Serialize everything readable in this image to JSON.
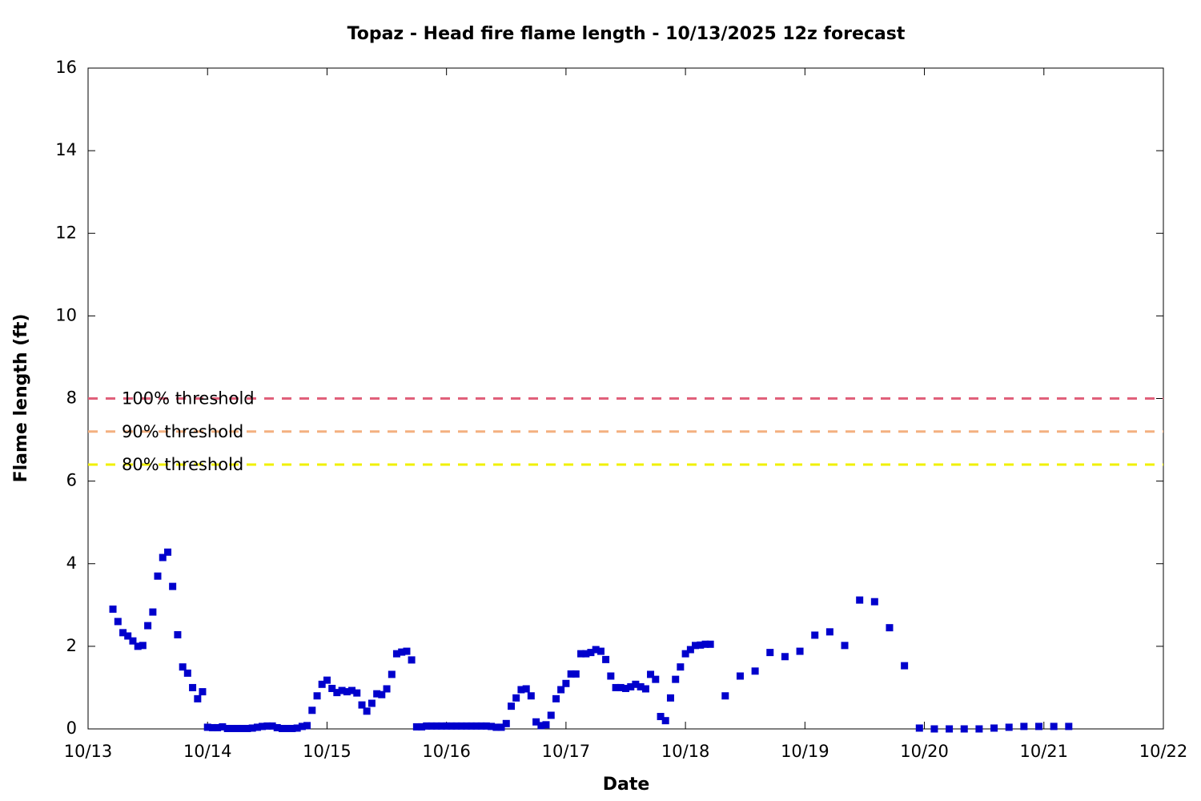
{
  "chart_data": {
    "type": "scatter",
    "title": "Topaz - Head fire flame length - 10/13/2025 12z forecast",
    "x_label": "Date",
    "y_label": "Flame length (ft)",
    "xlim": [
      0,
      9
    ],
    "xticks": [
      {
        "value": 0,
        "label": "10/13"
      },
      {
        "value": 1,
        "label": "10/14"
      },
      {
        "value": 2,
        "label": "10/15"
      },
      {
        "value": 3,
        "label": "10/16"
      },
      {
        "value": 4,
        "label": "10/17"
      },
      {
        "value": 5,
        "label": "10/18"
      },
      {
        "value": 6,
        "label": "10/19"
      },
      {
        "value": 7,
        "label": "10/20"
      },
      {
        "value": 8,
        "label": "10/21"
      },
      {
        "value": 9,
        "label": "10/22"
      }
    ],
    "ylim": [
      0,
      16
    ],
    "yticks": [
      0,
      2,
      4,
      6,
      8,
      10,
      12,
      14,
      16
    ],
    "thresholds": [
      {
        "label": "100% threshold",
        "value": 8,
        "color": "#e0607a"
      },
      {
        "label": "90% threshold",
        "value": 7.2,
        "color": "#f4b080"
      },
      {
        "label": "80% threshold",
        "value": 6.4,
        "color": "#f0f000"
      }
    ],
    "series": [
      {
        "color": "#0000cc",
        "x": [
          0.208,
          0.25,
          0.292,
          0.333,
          0.375,
          0.417,
          0.458,
          0.5,
          0.542,
          0.583,
          0.625,
          0.667,
          0.708,
          0.75,
          0.792,
          0.833,
          0.875,
          0.917,
          0.958,
          1,
          1.042,
          1.083,
          1.125,
          1.167,
          1.208,
          1.25,
          1.292,
          1.333,
          1.375,
          1.417,
          1.458,
          1.5,
          1.542,
          1.583,
          1.625,
          1.667,
          1.708,
          1.75,
          1.792,
          1.833,
          1.875,
          1.917,
          1.958,
          2,
          2.042,
          2.083,
          2.125,
          2.167,
          2.208,
          2.25,
          2.292,
          2.333,
          2.375,
          2.417,
          2.458,
          2.5,
          2.542,
          2.583,
          2.625,
          2.667,
          2.708,
          2.75,
          2.792,
          2.833,
          2.875,
          2.917,
          2.958,
          3,
          3.042,
          3.083,
          3.125,
          3.167,
          3.208,
          3.25,
          3.292,
          3.333,
          3.375,
          3.417,
          3.458,
          3.5,
          3.542,
          3.583,
          3.625,
          3.667,
          3.708,
          3.75,
          3.792,
          3.833,
          3.875,
          3.917,
          3.958,
          4,
          4.042,
          4.083,
          4.125,
          4.167,
          4.208,
          4.25,
          4.292,
          4.333,
          4.375,
          4.417,
          4.458,
          4.5,
          4.542,
          4.583,
          4.625,
          4.667,
          4.708,
          4.75,
          4.792,
          4.833,
          4.875,
          4.917,
          4.958,
          5,
          5.042,
          5.083,
          5.125,
          5.167,
          5.208,
          5.333,
          5.458,
          5.583,
          5.708,
          5.833,
          5.958,
          6.083,
          6.208,
          6.333,
          6.458,
          6.583,
          6.708,
          6.833,
          6.958,
          7.083,
          7.208,
          7.333,
          7.458,
          7.583,
          7.708,
          7.833,
          7.958,
          8.083,
          8.208
        ],
        "values": [
          2.9,
          2.6,
          2.33,
          2.25,
          2.13,
          2.0,
          2.02,
          2.5,
          2.83,
          3.7,
          4.15,
          4.28,
          3.45,
          2.28,
          1.5,
          1.35,
          1.0,
          0.73,
          0.9,
          0.04,
          0.03,
          0.03,
          0.05,
          0.01,
          0.01,
          0.01,
          0.01,
          0.01,
          0.02,
          0.04,
          0.06,
          0.07,
          0.07,
          0.03,
          0.01,
          0.01,
          0.01,
          0.02,
          0.06,
          0.08,
          0.45,
          0.8,
          1.08,
          1.18,
          0.98,
          0.88,
          0.93,
          0.9,
          0.93,
          0.87,
          0.58,
          0.43,
          0.62,
          0.85,
          0.83,
          0.97,
          1.32,
          1.82,
          1.86,
          1.88,
          1.67,
          0.05,
          0.05,
          0.07,
          0.07,
          0.07,
          0.07,
          0.07,
          0.07,
          0.07,
          0.07,
          0.07,
          0.07,
          0.07,
          0.07,
          0.07,
          0.06,
          0.04,
          0.04,
          0.13,
          0.55,
          0.75,
          0.95,
          0.97,
          0.8,
          0.17,
          0.08,
          0.1,
          0.33,
          0.73,
          0.95,
          1.1,
          1.33,
          1.33,
          1.82,
          1.82,
          1.85,
          1.92,
          1.88,
          1.68,
          1.28,
          1.0,
          1.0,
          0.98,
          1.02,
          1.08,
          1.02,
          0.97,
          1.32,
          1.2,
          0.3,
          0.2,
          0.75,
          1.2,
          1.5,
          1.82,
          1.92,
          2.02,
          2.03,
          2.05,
          2.05,
          0.8,
          1.28,
          1.4,
          1.85,
          1.75,
          1.88,
          2.27,
          2.35,
          2.02,
          3.12,
          3.08,
          2.45,
          1.53,
          0.02,
          0,
          0,
          0,
          0,
          0.02,
          0.04,
          0.06,
          0.06,
          0.06,
          0.06
        ]
      }
    ]
  }
}
